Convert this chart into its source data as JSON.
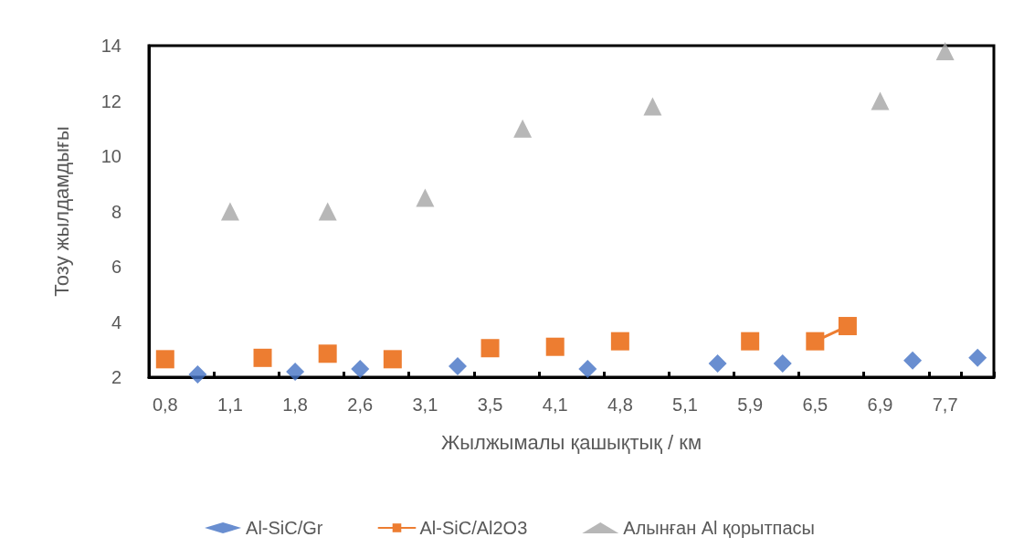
{
  "chart_data": {
    "type": "line",
    "xlabel": "Жылжымалы қашықтық / км",
    "ylabel": "Тозу жылдамдығы",
    "categories": [
      "0,8",
      null,
      "1,1",
      null,
      "1,8",
      null,
      "2,6",
      null,
      "3,1",
      null,
      "3,5",
      null,
      "4,1",
      null,
      "4,8",
      null,
      "5,1",
      null,
      "5,9",
      null,
      "6,5",
      null,
      "6,9",
      null,
      "7,7",
      null
    ],
    "ylim": [
      2,
      14
    ],
    "yticks": [
      2,
      4,
      6,
      8,
      10,
      12,
      14
    ],
    "grid": false,
    "legend": "bottom",
    "line_style": "solid",
    "series": [
      {
        "name": "Al-SiC/Gr",
        "type": "scatter",
        "color": "#4472c4",
        "marker": "diamond",
        "values": [
          null,
          2.1,
          null,
          null,
          2.2,
          null,
          2.3,
          null,
          null,
          2.4,
          null,
          null,
          null,
          2.3,
          null,
          null,
          null,
          2.5,
          null,
          2.5,
          null,
          null,
          null,
          2.6,
          null,
          2.7
        ]
      },
      {
        "name": "Al-SiC/Al2O3",
        "color": "#ed7d31",
        "marker": "square",
        "values": [
          2.65,
          null,
          null,
          2.7,
          null,
          2.85,
          null,
          2.65,
          null,
          null,
          3.05,
          null,
          3.1,
          null,
          3.3,
          null,
          null,
          null,
          3.3,
          null,
          3.3,
          3.85,
          null,
          null,
          null,
          null
        ]
      },
      {
        "name": "Алынған Al қорытпасы",
        "type": "scatter",
        "color": "#a5a5a5",
        "marker": "triangle",
        "values": [
          null,
          null,
          8,
          null,
          null,
          8,
          null,
          null,
          8.5,
          null,
          null,
          11,
          null,
          null,
          null,
          11.8,
          null,
          null,
          null,
          null,
          null,
          null,
          12,
          null,
          13.8,
          null
        ]
      }
    ]
  }
}
